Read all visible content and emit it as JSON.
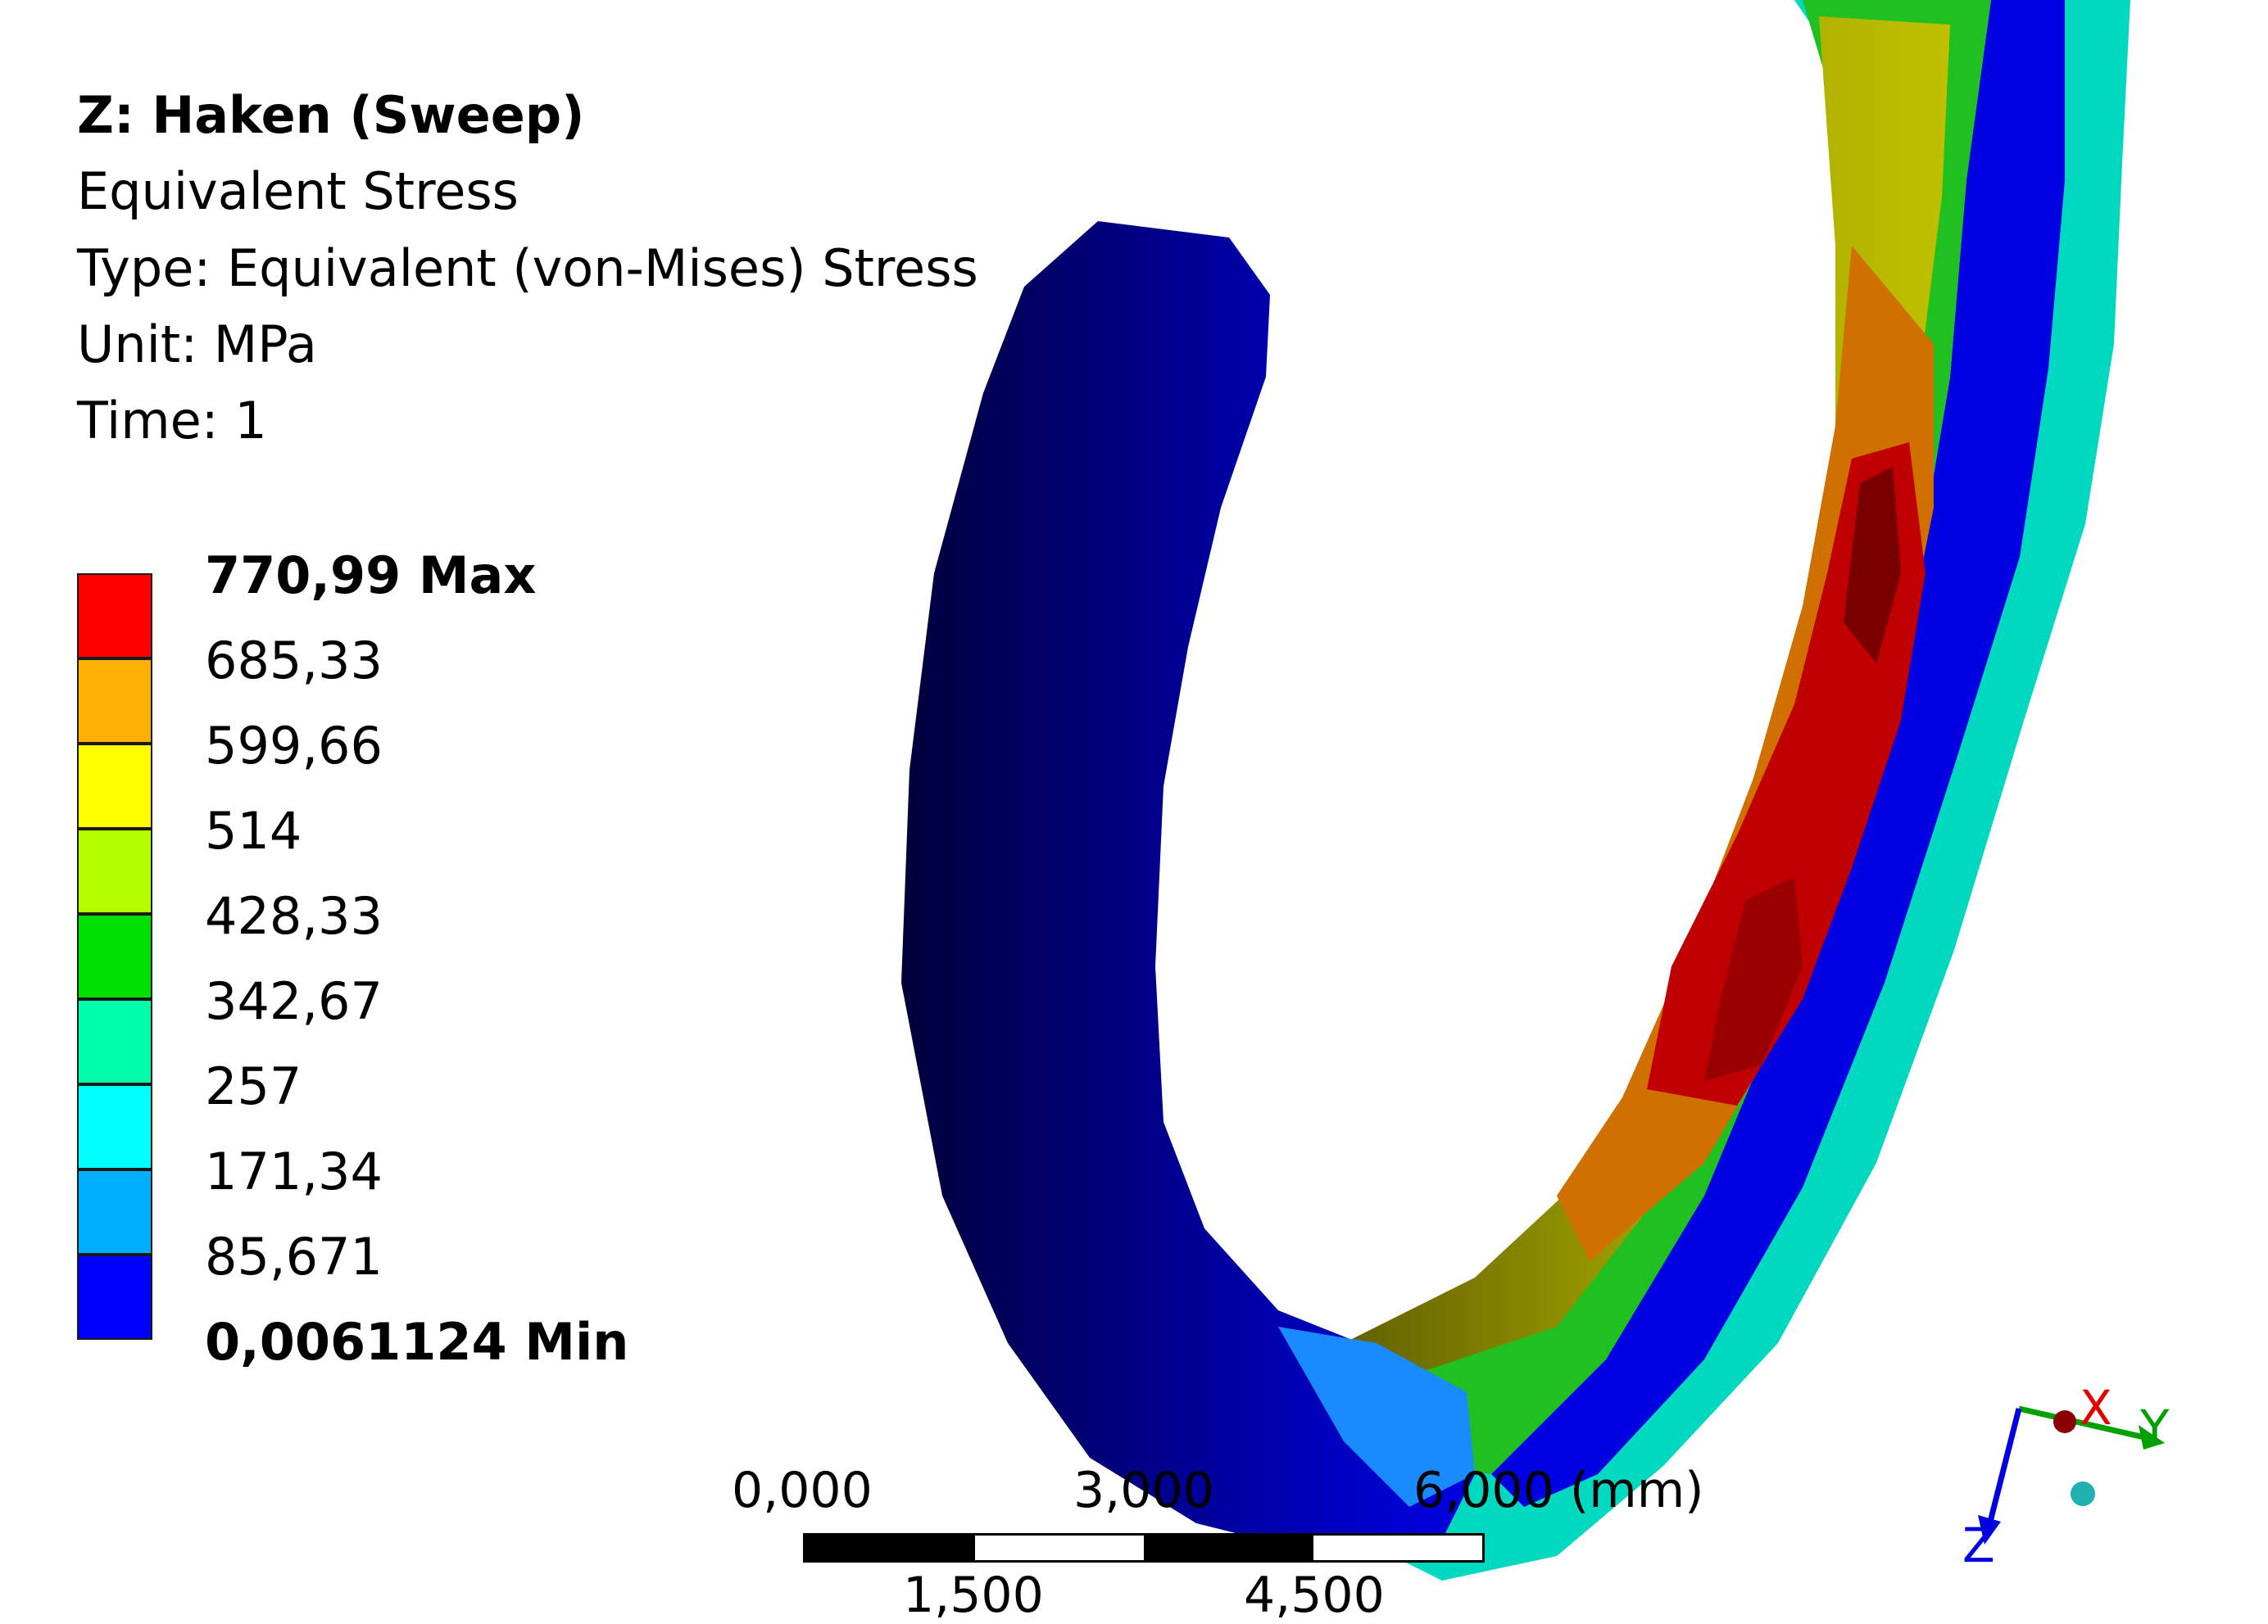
{
  "header": {
    "title": "Z: Haken (Sweep)",
    "result_name": "Equivalent Stress",
    "type_line": "Type: Equivalent (von-Mises) Stress",
    "unit_line": "Unit: MPa",
    "time_line": "Time: 1"
  },
  "legend": {
    "labels": [
      "770,99 Max",
      "685,33",
      "599,66",
      "514",
      "428,33",
      "342,67",
      "257",
      "171,34",
      "85,671",
      "0,0061124 Min"
    ],
    "colors": [
      "#ff0000",
      "#ffb000",
      "#ffff00",
      "#b4ff00",
      "#00e000",
      "#00ffaa",
      "#00ffff",
      "#00b0ff",
      "#0000ff"
    ]
  },
  "scale_bar": {
    "top_labels": [
      "0,000",
      "3,000",
      "6,000 (mm)"
    ],
    "bottom_labels": [
      "1,500",
      "4,500"
    ]
  },
  "triad": {
    "x_label": "X",
    "y_label": "Y",
    "z_label": "Z",
    "x_color": "#e00000",
    "y_color": "#00a000",
    "z_color": "#0000e0"
  }
}
